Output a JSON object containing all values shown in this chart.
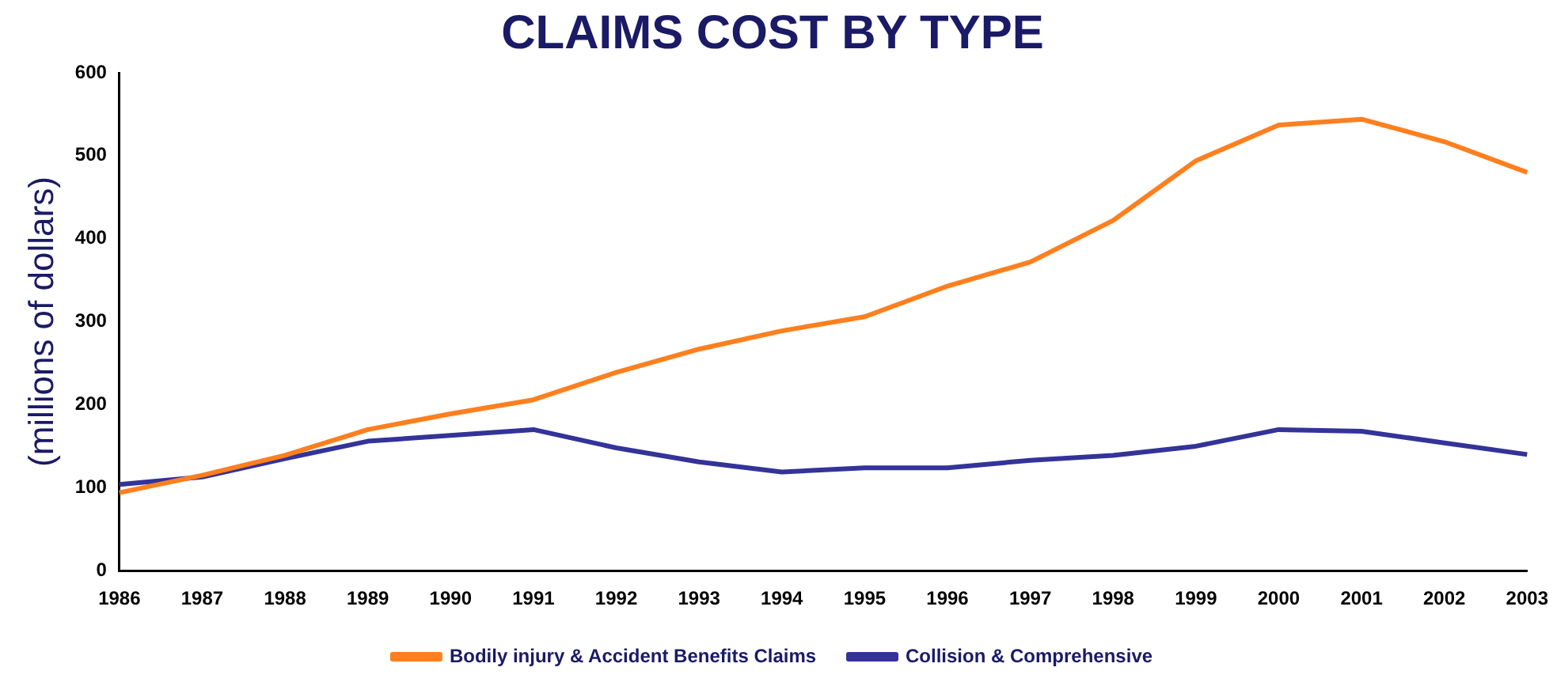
{
  "chart_data": {
    "type": "line",
    "title": "CLAIMS COST BY TYPE",
    "ylabel": "(millions of dollars)",
    "categories": [
      "1986",
      "1987",
      "1988",
      "1989",
      "1990",
      "1991",
      "1992",
      "1993",
      "1994",
      "1995",
      "1996",
      "1997",
      "1998",
      "1999",
      "2000",
      "2001",
      "2002",
      "2003"
    ],
    "series": [
      {
        "name": "Bodily injury & Accident Benefits Claims",
        "color": "#ff7f1e",
        "values": [
          94,
          115,
          139,
          170,
          189,
          206,
          239,
          267,
          289,
          306,
          343,
          372,
          422,
          494,
          537,
          544,
          517,
          480
        ]
      },
      {
        "name": "Collision & Comprehensive",
        "color": "#333399",
        "values": [
          104,
          113,
          135,
          156,
          163,
          170,
          148,
          131,
          119,
          124,
          124,
          133,
          139,
          150,
          170,
          168,
          154,
          140
        ]
      }
    ],
    "ylim": [
      0,
      600
    ],
    "yticks": [
      0,
      100,
      200,
      300,
      400,
      500,
      600
    ],
    "grid": false,
    "legend": "bottom",
    "marker": "none",
    "line_style": "solid"
  }
}
